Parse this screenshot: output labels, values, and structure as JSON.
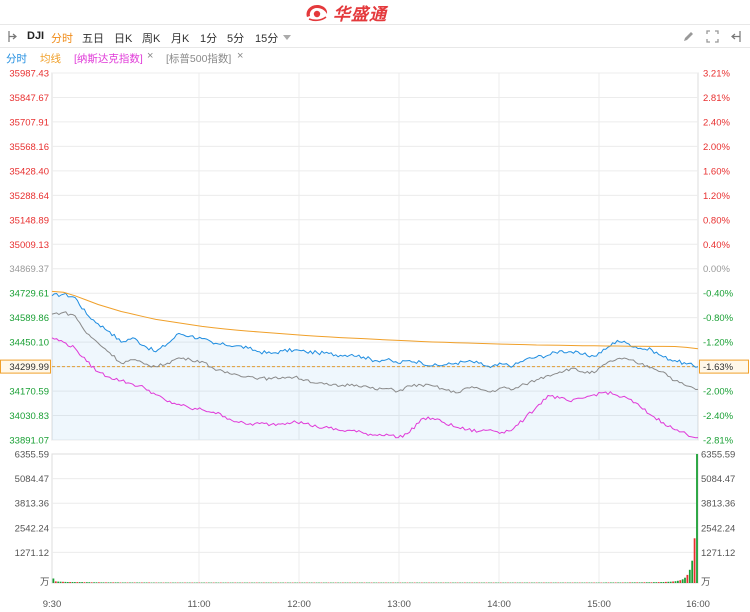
{
  "header": {
    "brand": "华盛通"
  },
  "toolbar": {
    "symbol": "DJI",
    "periods": [
      "分时",
      "五日",
      "日K",
      "周K",
      "月K",
      "1分",
      "5分",
      "15分"
    ],
    "active_period": "分时"
  },
  "legend": {
    "intraday": "分时",
    "average": "均线",
    "compare1": "[纳斯达克指数]",
    "compare2": "[标普500指数]",
    "close_symbol": "×"
  },
  "colors": {
    "price": "#1f8de0",
    "average": "#f0a02a",
    "nasdaq": "#e03ad8",
    "sp500": "#8a8a8a",
    "up": "#e83030",
    "down": "#1aa035",
    "neutral": "#999999",
    "grid": "#ececec"
  },
  "chart_data": {
    "type": "line",
    "symbol": "DJI",
    "prev_close": 34869.37,
    "last_price": 34299.99,
    "last_change_pct": "-1.63%",
    "price_ticks": [
      "35987.43",
      "35847.67",
      "35707.91",
      "35568.16",
      "35428.40",
      "35288.64",
      "35148.89",
      "35009.13",
      "34869.37",
      "34729.61",
      "34589.86",
      "34450.10",
      "34299.99",
      "34170.59",
      "34030.83",
      "33891.07"
    ],
    "pct_ticks": [
      "3.21%",
      "2.81%",
      "2.40%",
      "2.00%",
      "1.60%",
      "1.20%",
      "0.80%",
      "0.40%",
      "0.00%",
      "-0.40%",
      "-0.80%",
      "-1.20%",
      "-1.63%",
      "-2.00%",
      "-2.40%",
      "-2.81%"
    ],
    "ylim": [
      33891.07,
      35987.43
    ],
    "time_ticks": [
      "9:30",
      "11:00",
      "12:00",
      "13:00",
      "14:00",
      "15:00",
      "16:00"
    ],
    "series": [
      {
        "name": "分时",
        "values": [
          34715,
          34724,
          34705,
          34610,
          34555,
          34510,
          34450,
          34475,
          34430,
          34395,
          34440,
          34500,
          34485,
          34470,
          34440,
          34435,
          34430,
          34415,
          34395,
          34385,
          34400,
          34405,
          34395,
          34390,
          34385,
          34375,
          34380,
          34365,
          34345,
          34350,
          34330,
          34345,
          34335,
          34315,
          34320,
          34330,
          34340,
          34330,
          34305,
          34325,
          34315,
          34350,
          34365,
          34375,
          34400,
          34395,
          34380,
          34370,
          34410,
          34460,
          34440,
          34415,
          34405,
          34365,
          34345,
          34325,
          34310
        ]
      },
      {
        "name": "均线",
        "values": [
          34740,
          34735,
          34715,
          34690,
          34665,
          34645,
          34625,
          34610,
          34595,
          34580,
          34570,
          34560,
          34550,
          34540,
          34532,
          34525,
          34519,
          34513,
          34508,
          34503,
          34498,
          34493,
          34488,
          34484,
          34480,
          34476,
          34473,
          34470,
          34466,
          34463,
          34460,
          34457,
          34454,
          34451,
          34449,
          34447,
          34445,
          34443,
          34441,
          34439,
          34437,
          34436,
          34434,
          34433,
          34432,
          34431,
          34430,
          34429,
          34428,
          34428,
          34427,
          34427,
          34426,
          34426,
          34425,
          34420,
          34412
        ]
      },
      {
        "name": "纳斯达克指数",
        "values": [
          34475,
          34450,
          34415,
          34340,
          34280,
          34250,
          34230,
          34210,
          34190,
          34150,
          34110,
          34095,
          34070,
          34065,
          34050,
          34025,
          33995,
          33980,
          33985,
          33980,
          33985,
          34000,
          33985,
          33965,
          33960,
          33945,
          33945,
          33930,
          33920,
          33925,
          33905,
          33935,
          34010,
          34015,
          33990,
          33965,
          33950,
          33940,
          33950,
          33935,
          33955,
          34015,
          34080,
          34145,
          34130,
          34110,
          34130,
          34150,
          34165,
          34145,
          34125,
          34080,
          34030,
          33990,
          33950,
          33925,
          33905
        ]
      },
      {
        "name": "标普500指数",
        "values": [
          34610,
          34620,
          34600,
          34500,
          34445,
          34390,
          34330,
          34350,
          34325,
          34310,
          34330,
          34360,
          34350,
          34340,
          34300,
          34275,
          34265,
          34255,
          34245,
          34240,
          34250,
          34250,
          34235,
          34215,
          34205,
          34200,
          34210,
          34200,
          34180,
          34185,
          34170,
          34200,
          34205,
          34200,
          34180,
          34160,
          34190,
          34185,
          34165,
          34190,
          34180,
          34210,
          34235,
          34260,
          34280,
          34300,
          34280,
          34275,
          34325,
          34355,
          34350,
          34325,
          34305,
          34280,
          34230,
          34200,
          34180
        ]
      }
    ],
    "volume": {
      "unit": "万",
      "ticks": [
        "6355.59",
        "5084.47",
        "3813.36",
        "2542.24",
        "1271.12"
      ],
      "ylim": [
        0,
        6355.59
      ],
      "values": [
        220,
        80,
        70,
        65,
        60,
        55,
        50,
        50,
        48,
        46,
        45,
        44,
        42,
        40,
        40,
        38,
        36,
        35,
        34,
        33,
        32,
        32,
        31,
        30,
        30,
        29,
        28,
        28,
        27,
        27,
        26,
        26,
        25,
        25,
        25,
        24,
        24,
        24,
        23,
        23,
        23,
        22,
        22,
        22,
        22,
        21,
        21,
        21,
        21,
        21,
        20,
        20,
        20,
        20,
        20,
        20,
        20,
        20,
        20,
        20,
        20,
        20,
        20,
        20,
        20,
        20,
        20,
        20,
        20,
        20,
        20,
        20,
        20,
        20,
        20,
        20,
        20,
        20,
        20,
        20,
        20,
        20,
        20,
        20,
        20,
        20,
        20,
        20,
        20,
        20,
        20,
        20,
        20,
        20,
        20,
        20,
        20,
        20,
        20,
        20,
        20,
        20,
        20,
        20,
        20,
        20,
        20,
        20,
        20,
        20,
        20,
        20,
        20,
        20,
        20,
        20,
        20,
        20,
        20,
        20,
        20,
        20,
        20,
        20,
        20,
        20,
        20,
        20,
        20,
        20,
        20,
        20,
        20,
        20,
        20,
        20,
        20,
        20,
        20,
        20,
        20,
        20,
        20,
        20,
        20,
        20,
        20,
        20,
        20,
        20,
        20,
        20,
        20,
        20,
        20,
        20,
        20,
        20,
        20,
        20,
        20,
        20,
        20,
        20,
        20,
        20,
        20,
        20,
        20,
        20,
        20,
        20,
        20,
        20,
        20,
        20,
        20,
        20,
        20,
        20,
        20,
        20,
        20,
        20,
        20,
        20,
        20,
        20,
        20,
        20,
        20,
        20,
        20,
        20,
        20,
        20,
        20,
        20,
        20,
        20,
        20,
        20,
        20,
        20,
        20,
        20,
        20,
        20,
        20,
        20,
        20,
        20,
        20,
        20,
        20,
        20,
        20,
        20,
        20,
        20,
        20,
        20,
        20,
        20,
        20,
        20,
        20,
        22,
        22,
        22,
        22,
        23,
        23,
        23,
        24,
        24,
        25,
        25,
        26,
        26,
        27,
        28,
        28,
        29,
        30,
        31,
        32,
        33,
        34,
        35,
        36,
        38,
        40,
        42,
        44,
        48,
        52,
        58,
        65,
        75,
        90,
        110,
        140,
        180,
        260,
        400,
        650,
        1100,
        2200,
        6355.59
      ]
    }
  }
}
